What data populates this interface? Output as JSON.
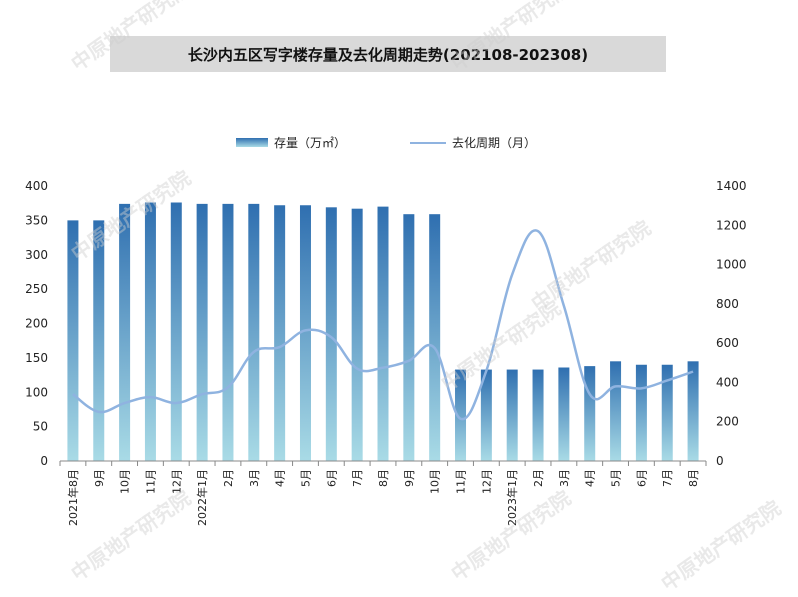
{
  "chart_data": {
    "type": "bar",
    "title": "长沙内五区写字楼存量及去化周期走势(202108-202308)",
    "categories": [
      "2021年8月",
      "9月",
      "10月",
      "11月",
      "12月",
      "2022年1月",
      "2月",
      "3月",
      "4月",
      "5月",
      "6月",
      "7月",
      "8月",
      "9月",
      "10月",
      "11月",
      "12月",
      "2023年1月",
      "2月",
      "3月",
      "4月",
      "5月",
      "6月",
      "7月",
      "8月"
    ],
    "series": [
      {
        "name": "存量（万㎡）",
        "type": "bar",
        "axis": "left",
        "values": [
          350,
          350,
          374,
          376,
          376,
          374,
          374,
          374,
          372,
          372,
          369,
          367,
          370,
          359,
          359,
          133,
          133,
          133,
          133,
          136,
          138,
          145,
          140,
          140,
          145
        ]
      },
      {
        "name": "去化周期（月）",
        "type": "line",
        "axis": "right",
        "values": [
          340,
          250,
          295,
          325,
          295,
          340,
          375,
          555,
          580,
          665,
          630,
          470,
          475,
          510,
          575,
          215,
          460,
          950,
          1170,
          790,
          340,
          380,
          370,
          410,
          455
        ]
      }
    ],
    "left_axis": {
      "min": 0,
      "max": 400,
      "step": 50,
      "ticks": [
        "0",
        "50",
        "100",
        "150",
        "200",
        "250",
        "300",
        "350",
        "400"
      ]
    },
    "right_axis": {
      "min": 0,
      "max": 1400,
      "step": 200,
      "ticks": [
        "0",
        "200",
        "400",
        "600",
        "800",
        "1000",
        "1200",
        "1400"
      ]
    },
    "legend_position": "top-center",
    "grid": false,
    "colors": {
      "bar_top": "#2f6fb0",
      "bar_bottom": "#a9dbe6",
      "line": "#8fb3e0"
    }
  },
  "watermark": "中原地产研究院"
}
